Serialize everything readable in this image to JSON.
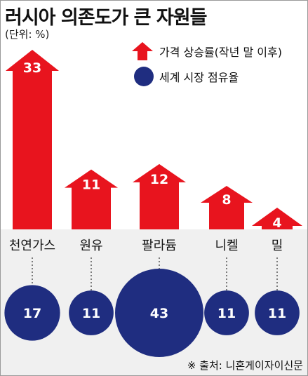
{
  "title": "러시아 의존도가 큰 자원들",
  "unit": "(단위: %)",
  "legend": {
    "price_label": "가격 상승률(작년 말 이후)",
    "share_label": "세계 시장 점유율"
  },
  "source": "※ 출처: 니혼게이자이신문",
  "colors": {
    "price": "#e8141e",
    "share": "#1f2d80",
    "background": "#ffffff",
    "lower_panel": "#f0f0f0"
  },
  "chart_data": {
    "type": "bar",
    "categories": [
      "천연가스",
      "원유",
      "팔라듐",
      "니켈",
      "밀"
    ],
    "series": [
      {
        "name": "가격 상승률(작년 말 이후)",
        "values": [
          33,
          11,
          12,
          8,
          4
        ]
      },
      {
        "name": "세계 시장 점유율",
        "values": [
          17,
          11,
          43,
          11,
          11
        ]
      }
    ]
  }
}
